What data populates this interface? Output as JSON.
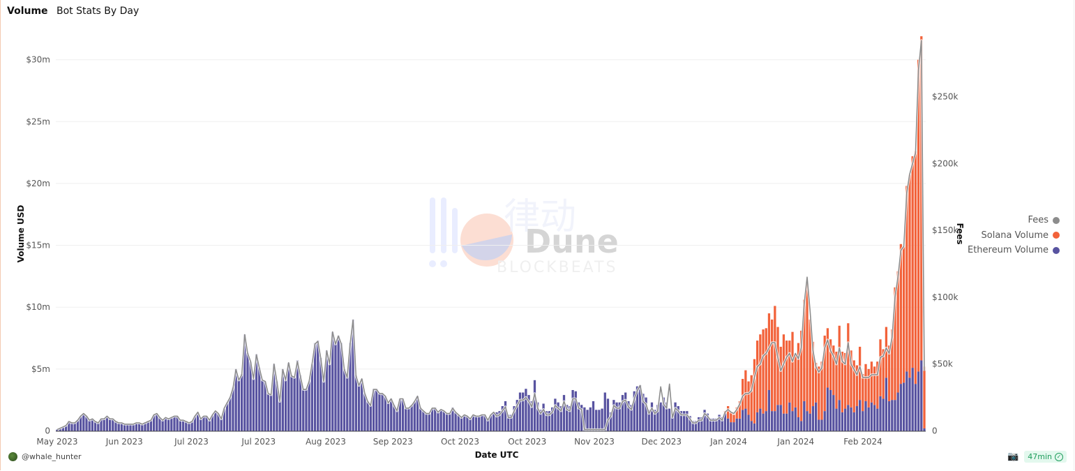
{
  "header": {
    "tab": "Volume",
    "title": "Bot Stats By Day"
  },
  "author": "@whale_hunter",
  "footer": {
    "refresh_age": "47min",
    "camera_icon": "camera-icon",
    "status_icon": "check-circle-icon"
  },
  "watermark": {
    "logo_text": "Dune",
    "sub_text": "BLOCKBEATS",
    "cjk_text": "律动"
  },
  "colors": {
    "fees": "#8c8c8c",
    "solana": "#f2623a",
    "ethereum": "#5853a0",
    "grid": "#efefef"
  },
  "chart_data": {
    "type": "bar",
    "stacked": true,
    "xlabel": "Date UTC",
    "ylabel": "Volume USD",
    "y2label": "Fees",
    "x_tick_labels": [
      "May 2023",
      "Jun 2023",
      "Jul 2023",
      "Jul 2023",
      "Aug 2023",
      "Sep 2023",
      "Oct 2023",
      "Oct 2023",
      "Nov 2023",
      "Dec 2023",
      "Jan 2024",
      "Jan 2024",
      "Feb 2024"
    ],
    "y_ticks": [
      {
        "value": 0,
        "label": "0"
      },
      {
        "value": 5,
        "label": "$5m"
      },
      {
        "value": 10,
        "label": "$10m"
      },
      {
        "value": 15,
        "label": "$15m"
      },
      {
        "value": 20,
        "label": "$20m"
      },
      {
        "value": 25,
        "label": "$25m"
      },
      {
        "value": 30,
        "label": "$30m"
      }
    ],
    "y2_ticks": [
      {
        "value": 0,
        "label": "0"
      },
      {
        "value": 50,
        "label": "$50k"
      },
      {
        "value": 100,
        "label": "$100k"
      },
      {
        "value": 150,
        "label": "$150k"
      },
      {
        "value": 200,
        "label": "$200k"
      },
      {
        "value": 250,
        "label": "$250k"
      }
    ],
    "ylim_musd": [
      0,
      32
    ],
    "y2lim_kusd": [
      0,
      300
    ],
    "grid": true,
    "legend_position": "right",
    "series": [
      {
        "name": "Fees",
        "type": "line",
        "axis": "right",
        "unit": "k USD",
        "values": [
          1,
          2,
          3,
          4,
          7,
          6,
          6,
          8,
          11,
          13,
          11,
          8,
          9,
          7,
          6,
          9,
          9,
          11,
          9,
          9,
          7,
          6,
          6,
          5,
          5,
          5,
          5,
          6,
          6,
          5,
          6,
          7,
          8,
          12,
          13,
          10,
          8,
          10,
          9,
          10,
          11,
          11,
          8,
          8,
          7,
          6,
          7,
          11,
          14,
          9,
          11,
          11,
          8,
          12,
          15,
          13,
          9,
          17,
          21,
          25,
          32,
          46,
          38,
          42,
          72,
          58,
          52,
          39,
          57,
          47,
          38,
          37,
          28,
          27,
          50,
          37,
          22,
          46,
          38,
          51,
          41,
          40,
          52,
          41,
          31,
          31,
          37,
          50,
          65,
          67,
          54,
          37,
          60,
          50,
          74,
          65,
          71,
          65,
          46,
          40,
          65,
          83,
          41,
          34,
          39,
          28,
          22,
          19,
          31,
          31,
          28,
          28,
          26,
          21,
          24,
          19,
          15,
          24,
          24,
          17,
          17,
          19,
          22,
          26,
          17,
          15,
          13,
          13,
          17,
          17,
          14,
          16,
          15,
          13,
          13,
          17,
          14,
          12,
          10,
          12,
          11,
          9,
          12,
          11,
          11,
          12,
          12,
          8,
          12,
          14,
          11,
          12,
          15,
          18,
          10,
          10,
          15,
          19,
          23,
          23,
          25,
          22,
          18,
          28,
          17,
          13,
          16,
          12,
          12,
          14,
          19,
          17,
          15,
          22,
          16,
          15,
          24,
          24,
          17,
          16,
          1,
          1,
          1,
          1,
          1,
          1,
          1,
          1,
          8,
          11,
          19,
          17,
          17,
          22,
          23,
          18,
          16,
          24,
          30,
          34,
          22,
          20,
          13,
          17,
          13,
          15,
          33,
          20,
          17,
          35,
          10,
          17,
          15,
          12,
          12,
          12,
          9,
          6,
          6,
          8,
          8,
          13,
          11,
          8,
          8,
          8,
          10,
          8,
          14,
          16,
          14,
          13,
          16,
          20,
          26,
          28,
          28,
          30,
          40,
          48,
          50,
          56,
          58,
          62,
          66,
          66,
          55,
          45,
          50,
          55,
          58,
          52,
          58,
          54,
          62,
          95,
          115,
          90,
          60,
          48,
          44,
          47,
          62,
          68,
          60,
          56,
          50,
          62,
          52,
          50,
          66,
          50,
          46,
          42,
          48,
          40,
          40,
          40,
          42,
          42,
          42,
          55,
          56,
          62,
          58,
          70,
          100,
          115,
          135,
          138,
          178,
          192,
          200,
          208,
          270,
          292,
          45
        ]
      },
      {
        "name": "Solana Volume",
        "type": "bar",
        "axis": "left",
        "unit": "M USD",
        "values": [
          0,
          0,
          0,
          0,
          0,
          0,
          0,
          0,
          0,
          0,
          0,
          0,
          0,
          0,
          0,
          0,
          0,
          0,
          0,
          0,
          0,
          0,
          0,
          0,
          0,
          0,
          0,
          0,
          0,
          0,
          0,
          0,
          0,
          0,
          0,
          0,
          0,
          0,
          0,
          0,
          0,
          0,
          0,
          0,
          0,
          0,
          0,
          0,
          0,
          0,
          0,
          0,
          0,
          0,
          0,
          0,
          0,
          0,
          0,
          0,
          0,
          0,
          0,
          0,
          0,
          0,
          0,
          0,
          0,
          0,
          0,
          0,
          0,
          0,
          0,
          0,
          0,
          0,
          0,
          0,
          0,
          0,
          0,
          0,
          0,
          0,
          0,
          0,
          0,
          0,
          0,
          0,
          0,
          0,
          0,
          0,
          0,
          0,
          0,
          0,
          0,
          0,
          0,
          0,
          0,
          0,
          0,
          0,
          0,
          0,
          0,
          0,
          0,
          0,
          0,
          0,
          0,
          0,
          0,
          0,
          0,
          0,
          0,
          0,
          0,
          0,
          0,
          0,
          0,
          0,
          0,
          0,
          0,
          0,
          0,
          0,
          0,
          0,
          0,
          0,
          0,
          0,
          0,
          0,
          0,
          0,
          0,
          0,
          0,
          0,
          0,
          0,
          0,
          0,
          0,
          0,
          0,
          0,
          0,
          0,
          0,
          0,
          0,
          0,
          0,
          0,
          0,
          0,
          0,
          0,
          0,
          0,
          0,
          0,
          0,
          0,
          0,
          0,
          0,
          0,
          0,
          0,
          0,
          0,
          0,
          0,
          0,
          0,
          0,
          0,
          0,
          0,
          0,
          0,
          0,
          0,
          0,
          0,
          0,
          0,
          0,
          0,
          0,
          0,
          0,
          0,
          0,
          0,
          0,
          0,
          0,
          0,
          0,
          0,
          0,
          0,
          0,
          0,
          0,
          0,
          0,
          0,
          0,
          0,
          0,
          0,
          0,
          0,
          0.2,
          1.0,
          0.8,
          0.6,
          0.9,
          1.4,
          2.5,
          3.1,
          2.7,
          3.7,
          5.2,
          5.8,
          6.0,
          6.8,
          6.7,
          6.2,
          7.4,
          8.5,
          6.3,
          4.7,
          6.4,
          5.9,
          5.0,
          6.4,
          4.2,
          6.0,
          7.3,
          8.2,
          10.3,
          7.6,
          5.2,
          3.2,
          4.3,
          4.7,
          6.1,
          4.8,
          4.1,
          4.0,
          4.6,
          6.0,
          4.9,
          4.5,
          6.6,
          4.6,
          4.2,
          3.3,
          4.3,
          3.0,
          3.0,
          3.1,
          3.3,
          3.1,
          3.8,
          4.6,
          4.0,
          4.1,
          4.5,
          5.7,
          9.1,
          9.8,
          11.3,
          11.0,
          15.0,
          16.4,
          17.1,
          18.8,
          25.2,
          26.2,
          5.0
        ]
      },
      {
        "name": "Ethereum Volume",
        "type": "bar",
        "axis": "left",
        "unit": "M USD",
        "values": [
          0.1,
          0.2,
          0.3,
          0.4,
          0.8,
          0.7,
          0.7,
          0.9,
          1.2,
          1.4,
          1.2,
          0.9,
          1.0,
          0.8,
          0.7,
          1.0,
          1.0,
          1.2,
          1.0,
          1.0,
          0.8,
          0.7,
          0.6,
          0.5,
          0.5,
          0.5,
          0.5,
          0.6,
          0.6,
          0.5,
          0.7,
          0.8,
          0.9,
          1.3,
          1.4,
          1.1,
          0.9,
          1.1,
          1.0,
          1.1,
          1.2,
          1.2,
          0.9,
          0.9,
          0.8,
          0.7,
          0.8,
          1.2,
          1.5,
          1.0,
          1.2,
          1.2,
          0.9,
          1.3,
          1.6,
          1.4,
          1.0,
          1.8,
          2.3,
          2.7,
          3.5,
          5.0,
          4.1,
          4.6,
          7.8,
          6.3,
          5.6,
          4.2,
          6.2,
          5.1,
          4.1,
          4.0,
          3.0,
          2.9,
          5.4,
          4.0,
          2.4,
          5.0,
          4.1,
          5.5,
          4.5,
          4.3,
          5.7,
          4.5,
          3.4,
          3.4,
          4.0,
          5.4,
          7.1,
          7.3,
          5.9,
          4.0,
          6.5,
          5.4,
          8.0,
          7.1,
          7.7,
          7.1,
          5.0,
          4.4,
          7.1,
          9.0,
          4.5,
          3.7,
          4.2,
          3.0,
          2.4,
          2.1,
          3.4,
          3.4,
          3.0,
          3.0,
          2.8,
          2.3,
          2.6,
          2.1,
          1.6,
          2.6,
          2.6,
          1.8,
          1.8,
          2.1,
          2.4,
          2.8,
          1.9,
          1.6,
          1.4,
          1.4,
          1.8,
          1.9,
          1.5,
          1.7,
          1.6,
          1.4,
          1.4,
          1.9,
          1.5,
          1.3,
          1.1,
          1.3,
          1.2,
          1.0,
          1.3,
          1.2,
          1.2,
          1.3,
          1.3,
          0.9,
          1.3,
          1.5,
          1.5,
          1.6,
          2.0,
          2.4,
          1.3,
          1.3,
          2.0,
          2.5,
          3.1,
          3.1,
          3.4,
          2.9,
          2.4,
          4.1,
          2.3,
          1.7,
          2.2,
          1.6,
          1.6,
          1.9,
          2.6,
          2.3,
          2.0,
          2.9,
          2.1,
          2.0,
          3.3,
          3.2,
          2.3,
          2.1,
          1.9,
          1.7,
          1.9,
          2.4,
          1.7,
          1.7,
          1.8,
          3.1,
          2.6,
          1.5,
          2.5,
          2.3,
          2.3,
          2.9,
          3.1,
          2.4,
          2.1,
          3.2,
          3.6,
          3.7,
          3.0,
          2.7,
          1.7,
          2.3,
          1.7,
          2.1,
          2.3,
          2.7,
          2.3,
          1.8,
          1.2,
          2.3,
          2.0,
          1.6,
          1.6,
          1.6,
          1.2,
          0.8,
          0.8,
          1.1,
          1.1,
          1.7,
          1.4,
          1.0,
          1.0,
          1.0,
          1.3,
          1.1,
          1.4,
          1.0,
          0.7,
          0.7,
          1.0,
          1.0,
          1.7,
          1.8,
          1.3,
          0.8,
          0.6,
          1.5,
          1.8,
          1.4,
          1.6,
          3.3,
          1.6,
          1.6,
          2.1,
          2.1,
          1.4,
          1.4,
          2.3,
          1.6,
          1.9,
          1.1,
          0.8,
          2.4,
          1.6,
          1.4,
          2.0,
          2.3,
          0.9,
          0.9,
          1.6,
          3.5,
          3.3,
          2.9,
          1.8,
          2.5,
          1.5,
          1.8,
          2.1,
          1.9,
          1.5,
          2.0,
          2.5,
          1.6,
          2.4,
          1.9,
          2.3,
          2.1,
          1.8,
          2.8,
          2.6,
          4.3,
          2.4,
          2.5,
          2.5,
          3.1,
          3.8,
          3.9,
          4.8,
          4.3,
          5.1,
          3.8,
          4.8,
          5.7,
          0.2
        ]
      }
    ]
  }
}
